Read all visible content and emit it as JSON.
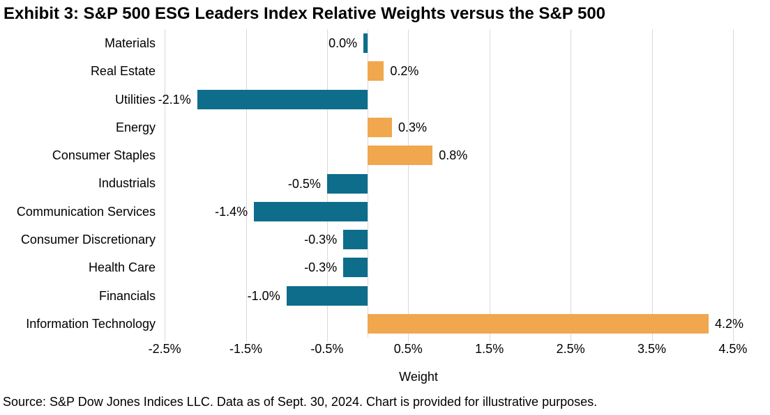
{
  "title": "Exhibit 3: S&P 500 ESG Leaders Index Relative Weights versus the S&P 500",
  "source_note": "Source: S&P Dow Jones Indices LLC. Data as of Sept. 30, 2024. Chart is provided for illustrative purposes.",
  "chart_data": {
    "type": "bar",
    "orientation": "horizontal",
    "title": "Exhibit 3: S&P 500 ESG Leaders Index Relative Weights versus the S&P 500",
    "xlabel": "Weight",
    "xlim": [
      -2.75,
      4.75
    ],
    "grid": true,
    "legend": false,
    "x_tick_values": [
      -2.5,
      -1.5,
      -0.5,
      0.5,
      1.5,
      2.5,
      3.5,
      4.5
    ],
    "x_tick_labels": [
      "-2.5%",
      "-1.5%",
      "-0.5%",
      "0.5%",
      "1.5%",
      "2.5%",
      "3.5%",
      "4.5%"
    ],
    "categories": [
      "Materials",
      "Real Estate",
      "Utilities",
      "Energy",
      "Consumer Staples",
      "Industrials",
      "Communication Services",
      "Consumer Discretionary",
      "Health Care",
      "Financials",
      "Information Technology"
    ],
    "values": [
      0.0,
      0.2,
      -2.1,
      0.3,
      0.8,
      -0.5,
      -1.4,
      -0.3,
      -0.3,
      -1.0,
      4.2
    ],
    "value_labels": [
      "0.0%",
      "0.2%",
      "-2.1%",
      "0.3%",
      "0.8%",
      "-0.5%",
      "-1.4%",
      "-0.3%",
      "-0.3%",
      "-1.0%",
      "4.2%"
    ],
    "bar_directions": [
      -1,
      1,
      -1,
      1,
      1,
      -1,
      -1,
      -1,
      -1,
      -1,
      1
    ],
    "colors": {
      "positive_bar": "#F0A74E",
      "negative_bar": "#0D6D8A",
      "gridline": "#D9D9D9",
      "text": "#000000"
    }
  }
}
